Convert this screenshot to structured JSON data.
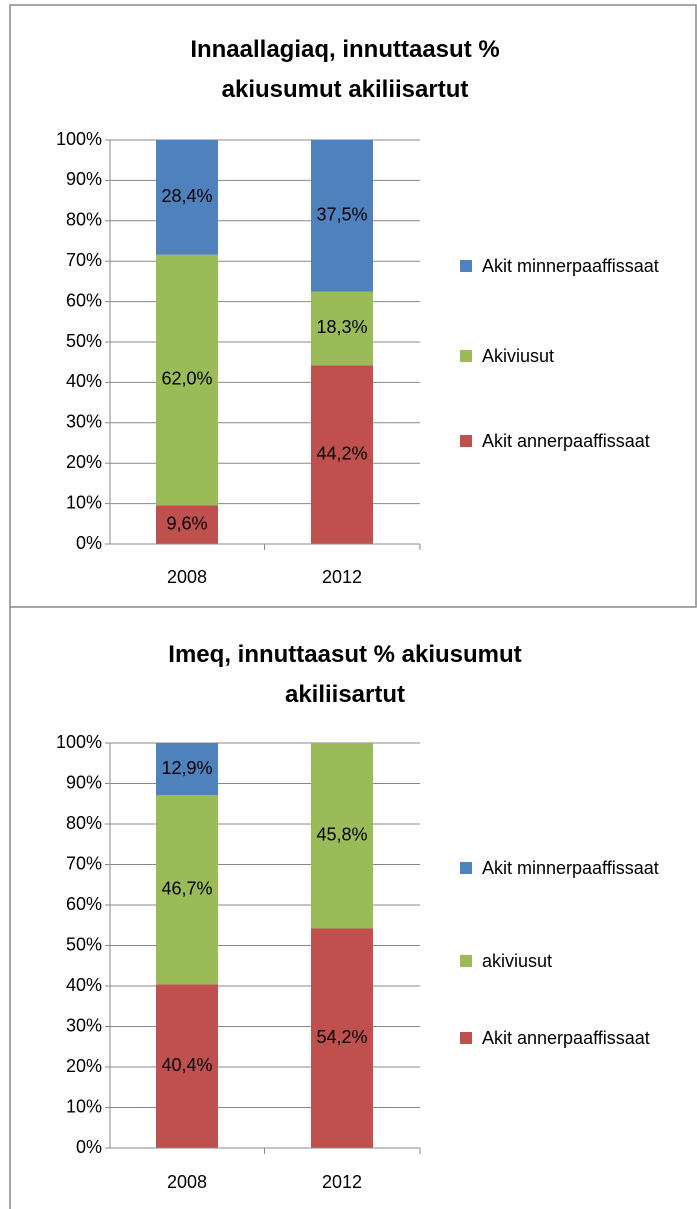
{
  "chart_data": [
    {
      "type": "stacked_bar",
      "title": "Innaallagiaq, innuttaasut % akiusumut akiliisartut",
      "categories": [
        "2008",
        "2012"
      ],
      "series": [
        {
          "name": "Akit annerpaaffissaat",
          "color": "#c0504d",
          "values": [
            9.6,
            44.2
          ],
          "value_labels": [
            "9,6%",
            "44,2%"
          ]
        },
        {
          "name": "Akiviusut",
          "color": "#9bbb59",
          "values": [
            62.0,
            18.3
          ],
          "value_labels": [
            "62,0%",
            "18,3%"
          ]
        },
        {
          "name": "Akit minnerpaaffissaat",
          "color": "#4f81bd",
          "values": [
            28.4,
            37.5
          ],
          "value_labels": [
            "28,4%",
            "37,5%"
          ]
        }
      ],
      "ylim": [
        0,
        100
      ],
      "yticks": [
        {
          "value": 0,
          "label": "0%"
        },
        {
          "value": 10,
          "label": "10%"
        },
        {
          "value": 20,
          "label": "20%"
        },
        {
          "value": 30,
          "label": "30%"
        },
        {
          "value": 40,
          "label": "40%"
        },
        {
          "value": 50,
          "label": "50%"
        },
        {
          "value": 60,
          "label": "60%"
        },
        {
          "value": 70,
          "label": "70%"
        },
        {
          "value": 80,
          "label": "80%"
        },
        {
          "value": 90,
          "label": "90%"
        },
        {
          "value": 100,
          "label": "100%"
        }
      ],
      "grid": true,
      "legend": "right"
    },
    {
      "type": "stacked_bar",
      "title": "Imeq, innuttaasut % akiusumut akiliisartut",
      "categories": [
        "2008",
        "2012"
      ],
      "series": [
        {
          "name": "Akit annerpaaffissaat",
          "color": "#c0504d",
          "values": [
            40.4,
            54.2
          ],
          "value_labels": [
            "40,4%",
            "54,2%"
          ]
        },
        {
          "name": "akiviusut",
          "color": "#9bbb59",
          "values": [
            46.7,
            45.8
          ],
          "value_labels": [
            "46,7%",
            "45,8%"
          ]
        },
        {
          "name": "Akit minnerpaaffissaat",
          "color": "#4f81bd",
          "values": [
            12.9,
            0
          ],
          "value_labels": [
            "12,9%",
            null
          ]
        }
      ],
      "ylim": [
        0,
        100
      ],
      "yticks": [
        {
          "value": 0,
          "label": "0%"
        },
        {
          "value": 10,
          "label": "10%"
        },
        {
          "value": 20,
          "label": "20%"
        },
        {
          "value": 30,
          "label": "30%"
        },
        {
          "value": 40,
          "label": "40%"
        },
        {
          "value": 50,
          "label": "50%"
        },
        {
          "value": 60,
          "label": "60%"
        },
        {
          "value": 70,
          "label": "70%"
        },
        {
          "value": 80,
          "label": "80%"
        },
        {
          "value": 90,
          "label": "90%"
        },
        {
          "value": 100,
          "label": "100%"
        }
      ],
      "grid": true,
      "legend": "right"
    }
  ]
}
